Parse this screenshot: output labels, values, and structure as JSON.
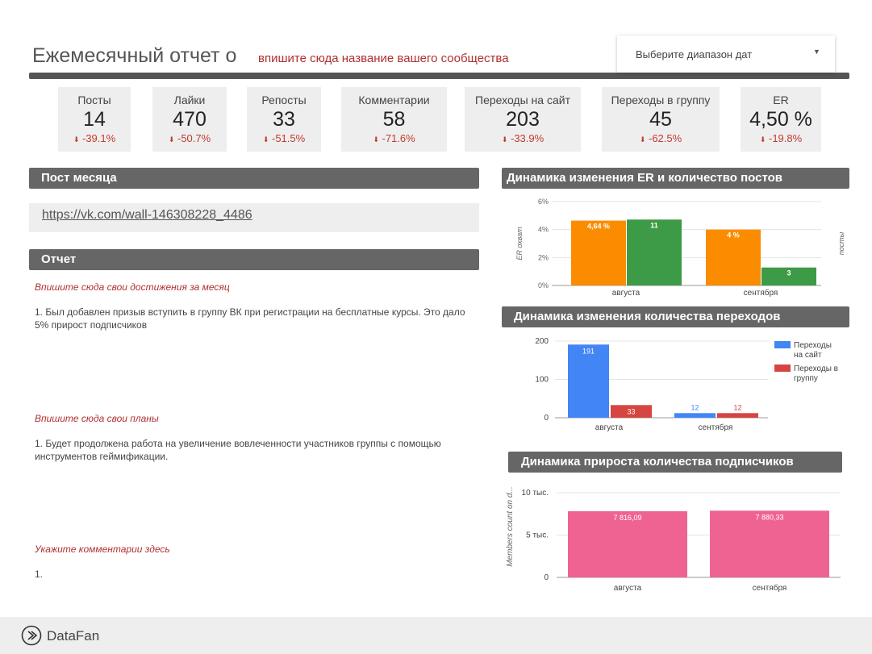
{
  "header": {
    "title": "Ежемесячный отчет о",
    "community_placeholder": "впишите сюда название вашего сообщества",
    "date_range": "Выберите диапазон дат"
  },
  "kpis": [
    {
      "label": "Посты",
      "value": "14",
      "delta": "-39.1%"
    },
    {
      "label": "Лайки",
      "value": "470",
      "delta": "-50.7%"
    },
    {
      "label": "Репосты",
      "value": "33",
      "delta": "-51.5%"
    },
    {
      "label": "Комментарии",
      "value": "58",
      "delta": "-71.6%"
    },
    {
      "label": "Переходы на сайт",
      "value": "203",
      "delta": "-33.9%"
    },
    {
      "label": "Переходы в группу",
      "value": "45",
      "delta": "-62.5%"
    },
    {
      "label": "ER",
      "value": "4,50 %",
      "delta": "-19.8%"
    }
  ],
  "post_of_month": {
    "title": "Пост месяца",
    "link": "https://vk.com/wall-146308228_4486"
  },
  "report": {
    "title": "Отчет",
    "achievements_prompt": "Впишите сюда свои достижения за месяц",
    "achievements_text": "1. Был добавлен призыв вступить в группу ВК при регистрации на бесплатные курсы. Это дало 5% прирост подписчиков",
    "plans_prompt": "Впишите сюда свои планы",
    "plans_text": "1. Будет продолжена работа на увеличение вовлеченности участников группы с помощью инструментов геймификации.",
    "comments_prompt": "Укажите комментарии здесь",
    "comments_text": "1."
  },
  "footer": {
    "brand": "DataFan"
  },
  "colors": {
    "orange": "#fb8c00",
    "green": "#3d9a46",
    "blue": "#4285f4",
    "red": "#d64541",
    "pink": "#ef6393",
    "dark_bar": "#666666",
    "accent_red": "#b03030"
  },
  "chart_data": [
    {
      "type": "bar",
      "title": "Динамика изменения ER и количество постов",
      "categories": [
        "августа",
        "сентября"
      ],
      "series": [
        {
          "name": "",
          "axis": "left",
          "values": [
            4.64,
            4.0
          ],
          "labels": [
            "4,64 %",
            "4 %"
          ],
          "color": "#fb8c00"
        },
        {
          "name": "",
          "axis": "right",
          "values": [
            11,
            3
          ],
          "labels": [
            "11",
            "3"
          ],
          "color": "#3d9a46"
        }
      ],
      "ylabel": "ER охват",
      "y2label": "посты",
      "yticks": [
        "0%",
        "2%",
        "4%",
        "6%"
      ],
      "ylim": [
        0,
        6
      ],
      "y2lim": [
        0,
        14
      ]
    },
    {
      "type": "bar",
      "title": "Динамика изменения количества переходов",
      "categories": [
        "августа",
        "сентября"
      ],
      "series": [
        {
          "name": "Переходы на сайт",
          "values": [
            191,
            12
          ],
          "color": "#4285f4"
        },
        {
          "name": "Переходы в группу",
          "values": [
            33,
            12
          ],
          "color": "#d64541"
        }
      ],
      "legend_lines": [
        [
          "Переходы",
          "на сайт"
        ],
        [
          "Переходы в",
          "группу"
        ]
      ],
      "yticks": [
        "0",
        "100",
        "200"
      ],
      "ylim": [
        0,
        200
      ],
      "legend": "right"
    },
    {
      "type": "bar",
      "title": "Динамика прироста количества подписчиков",
      "categories": [
        "августа",
        "сентября"
      ],
      "series": [
        {
          "name": "",
          "values": [
            7816.09,
            7880.33
          ],
          "labels": [
            "7 816,09",
            "7 880,33"
          ],
          "color": "#ef6393"
        }
      ],
      "ylabel": "Members count on d...",
      "yticks": [
        "0",
        "5 тыс.",
        "10 тыс."
      ],
      "ylim": [
        0,
        10000
      ]
    }
  ]
}
